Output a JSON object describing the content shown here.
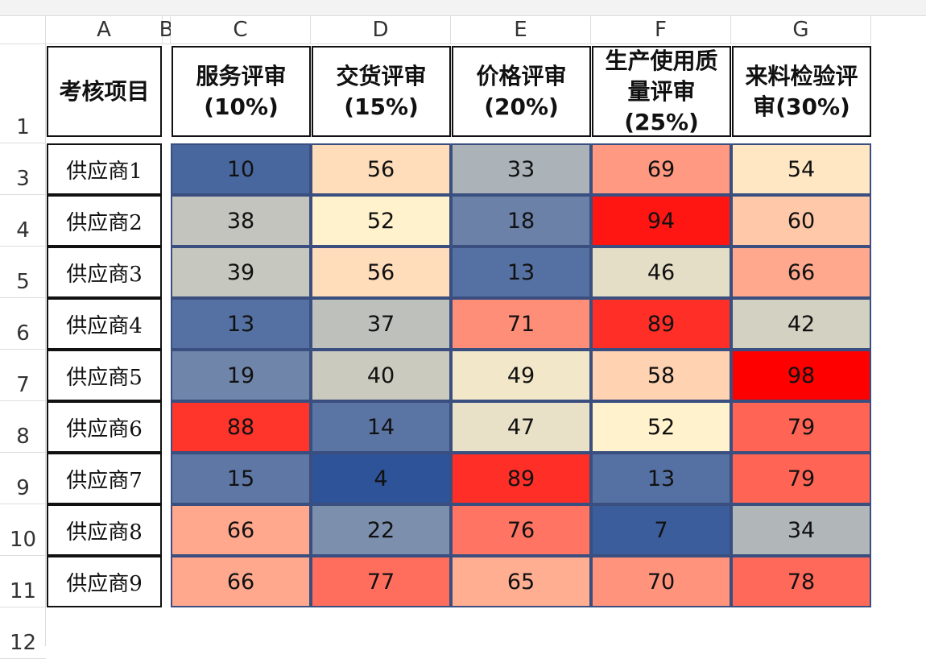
{
  "column_letters": [
    "A",
    "B",
    "C",
    "D",
    "E",
    "F",
    "G"
  ],
  "row_numbers": [
    "1",
    "3",
    "4",
    "5",
    "6",
    "7",
    "8",
    "9",
    "10",
    "11",
    "12"
  ],
  "header": {
    "item": "考核项目",
    "columns": [
      [
        "服务评审",
        "(10%)"
      ],
      [
        "交货评审",
        "(15%)"
      ],
      [
        "价格评审",
        "(20%)"
      ],
      [
        "生产使用质",
        "量评审(25%)"
      ],
      [
        "来料检验评",
        "审(30%)"
      ]
    ]
  },
  "table": {
    "rows": [
      {
        "name": "供应商1",
        "values": [
          10,
          56,
          33,
          69,
          54
        ]
      },
      {
        "name": "供应商2",
        "values": [
          38,
          52,
          18,
          94,
          60
        ]
      },
      {
        "name": "供应商3",
        "values": [
          39,
          56,
          13,
          46,
          66
        ]
      },
      {
        "name": "供应商4",
        "values": [
          13,
          37,
          71,
          89,
          42
        ]
      },
      {
        "name": "供应商5",
        "values": [
          19,
          40,
          49,
          58,
          98
        ]
      },
      {
        "name": "供应商6",
        "values": [
          88,
          14,
          47,
          52,
          79
        ]
      },
      {
        "name": "供应商7",
        "values": [
          15,
          4,
          89,
          13,
          79
        ]
      },
      {
        "name": "供应商8",
        "values": [
          66,
          22,
          76,
          7,
          34
        ]
      },
      {
        "name": "供应商9",
        "values": [
          66,
          77,
          65,
          70,
          78
        ]
      }
    ]
  }
}
